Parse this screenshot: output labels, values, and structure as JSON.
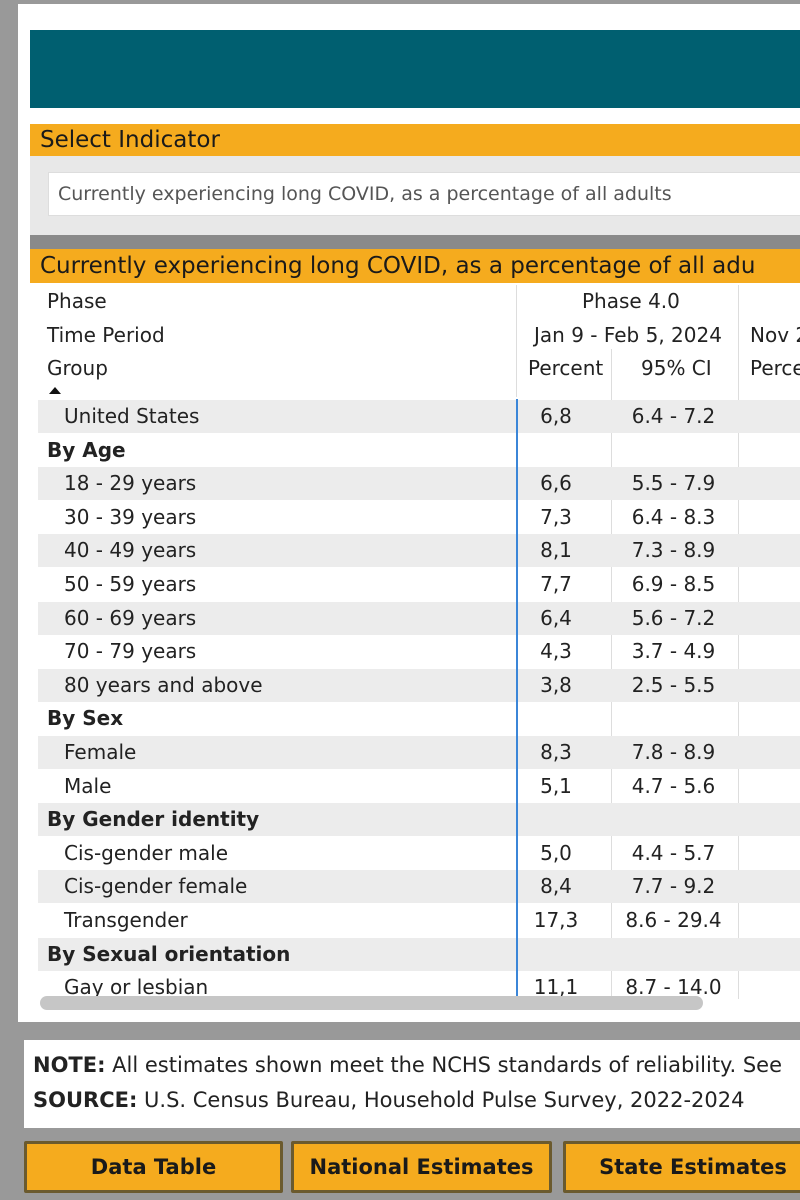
{
  "select_indicator": {
    "title": "Select Indicator",
    "value": "Currently experiencing long COVID, as a percentage of all adults"
  },
  "table": {
    "title": "Currently experiencing long COVID, as a percentage of all adu",
    "headers": {
      "phase_label": "Phase",
      "time_label": "Time Period",
      "group_label": "Group",
      "phase_value": "Phase 4.0",
      "time_value": "Jan 9 - Feb 5, 2024",
      "next_time_value": "Nov 2",
      "percent": "Percent",
      "ci": "95% CI",
      "next_percent": "Perce"
    },
    "rows": [
      {
        "label": "United States",
        "percent": "6,8",
        "ci": "6.4 - 7.2"
      },
      {
        "label": "By Age",
        "percent": "",
        "ci": ""
      },
      {
        "label": "18 - 29 years",
        "percent": "6,6",
        "ci": "5.5 - 7.9"
      },
      {
        "label": "30 - 39 years",
        "percent": "7,3",
        "ci": "6.4 - 8.3"
      },
      {
        "label": "40 - 49 years",
        "percent": "8,1",
        "ci": "7.3 - 8.9"
      },
      {
        "label": "50 - 59 years",
        "percent": "7,7",
        "ci": "6.9 - 8.5"
      },
      {
        "label": "60 - 69 years",
        "percent": "6,4",
        "ci": "5.6 - 7.2"
      },
      {
        "label": "70 - 79 years",
        "percent": "4,3",
        "ci": "3.7 - 4.9"
      },
      {
        "label": "80 years and above",
        "percent": "3,8",
        "ci": "2.5 - 5.5"
      },
      {
        "label": "By Sex",
        "percent": "",
        "ci": ""
      },
      {
        "label": "Female",
        "percent": "8,3",
        "ci": "7.8 - 8.9"
      },
      {
        "label": "Male",
        "percent": "5,1",
        "ci": "4.7 - 5.6"
      },
      {
        "label": "By Gender identity",
        "percent": "",
        "ci": ""
      },
      {
        "label": "Cis-gender male",
        "percent": "5,0",
        "ci": "4.4 - 5.7"
      },
      {
        "label": "Cis-gender female",
        "percent": "8,4",
        "ci": "7.7 - 9.2"
      },
      {
        "label": "Transgender",
        "percent": "17,3",
        "ci": "8.6 - 29.4"
      },
      {
        "label": "By Sexual orientation",
        "percent": "",
        "ci": ""
      },
      {
        "label": "Gay or lesbian",
        "percent": "11,1",
        "ci": "8.7 - 14.0"
      }
    ]
  },
  "notes": {
    "note_label": "NOTE:",
    "note_text": " All estimates shown meet the NCHS standards of reliability. See",
    "source_label": "SOURCE:",
    "source_text": " U.S. Census Bureau, Household Pulse Survey, 2022-2024"
  },
  "buttons": {
    "data_table": "Data Table",
    "national": "National Estimates",
    "state": "State Estimates"
  },
  "colors": {
    "banner": "#005f70",
    "accent": "#f5ab1e",
    "selection_line": "#3b86d8"
  }
}
